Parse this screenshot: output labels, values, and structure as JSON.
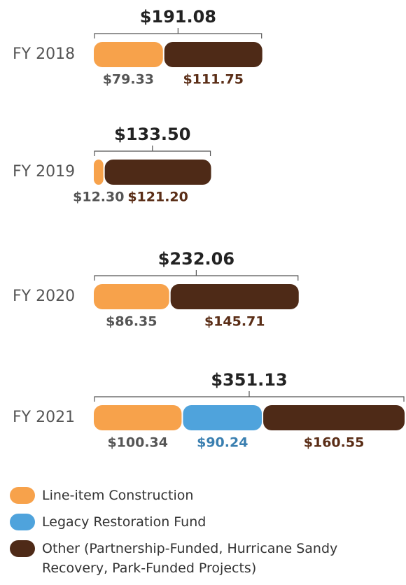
{
  "chart_data": {
    "type": "stacked-bar",
    "categories": [
      "FY 2018",
      "FY 2019",
      "FY 2020",
      "FY 2021"
    ],
    "totals": [
      191.08,
      133.5,
      232.06,
      351.13
    ],
    "total_labels": [
      "$191.08",
      "$133.50",
      "$232.06",
      "$351.13"
    ],
    "series": [
      {
        "name": "Line-item Construction",
        "color": "#f7a24b",
        "label_color": "#555555",
        "values": [
          79.33,
          12.3,
          86.35,
          100.34
        ],
        "value_labels": [
          "$79.33",
          "$12.30",
          "$86.35",
          "$100.34"
        ]
      },
      {
        "name": "Legacy Restoration Fund",
        "color": "#4fa3dc",
        "label_color": "#3a7fb0",
        "values": [
          null,
          null,
          null,
          90.24
        ],
        "value_labels": [
          null,
          null,
          null,
          "$90.24"
        ]
      },
      {
        "name": "Other (Partnership-Funded, Hurricane Sandy Recovery, Park-Funded Projects)",
        "color": "#4e2a17",
        "label_color": "#5a2d16",
        "values": [
          111.75,
          121.2,
          145.71,
          160.55
        ],
        "value_labels": [
          "$111.75",
          "$121.20",
          "$145.71",
          "$160.55"
        ]
      }
    ]
  }
}
